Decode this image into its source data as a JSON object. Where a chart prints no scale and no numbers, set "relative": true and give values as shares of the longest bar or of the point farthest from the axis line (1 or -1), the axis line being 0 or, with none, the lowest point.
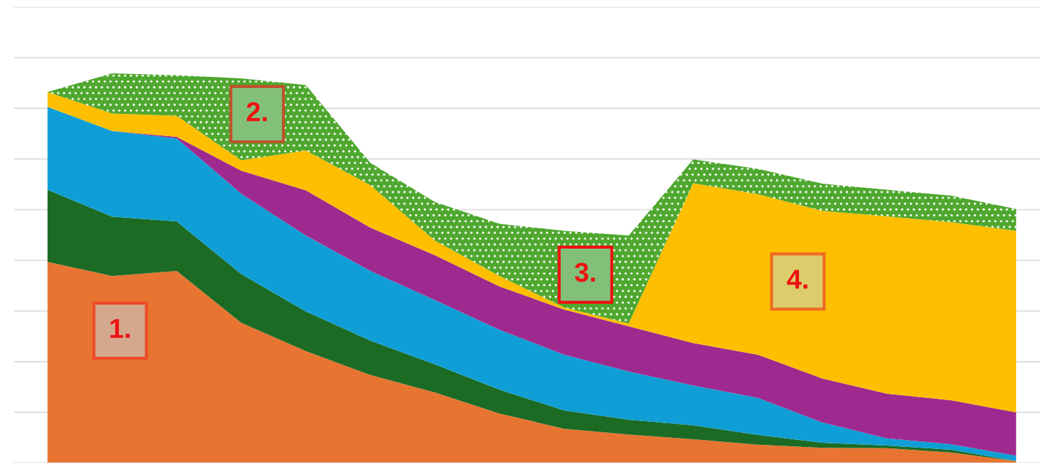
{
  "chart_data": {
    "type": "area",
    "stacked": true,
    "relative": true,
    "grid": "y",
    "categories": [
      null,
      null,
      null,
      null,
      null,
      null,
      null,
      null,
      null,
      null,
      null,
      null,
      null,
      null,
      null,
      null
    ],
    "series": [
      {
        "color": "#e87431",
        "values": [
          0.516,
          0.48,
          0.493,
          0.36,
          0.287,
          0.226,
          0.181,
          0.127,
          0.088,
          0.073,
          0.061,
          0.047,
          0.039,
          0.038,
          0.027,
          0.005
        ]
      },
      {
        "color": "#1b6b24",
        "values": [
          0.185,
          0.152,
          0.127,
          0.125,
          0.102,
          0.088,
          0.072,
          0.061,
          0.047,
          0.038,
          0.036,
          0.025,
          0.013,
          0.007,
          0.007,
          0
        ]
      },
      {
        "color": "#0f9fd6",
        "values": [
          0.213,
          0.22,
          0.213,
          0.206,
          0.195,
          0.179,
          0.165,
          0.154,
          0.143,
          0.124,
          0.102,
          0.095,
          0.052,
          0.018,
          0.014,
          0.014
        ]
      },
      {
        "color": "#9e2a8f",
        "values": [
          0,
          0,
          0.004,
          0.059,
          0.116,
          0.111,
          0.115,
          0.111,
          0.116,
          0.116,
          0.109,
          0.111,
          0.113,
          0.115,
          0.113,
          0.111
        ]
      },
      {
        "color": "#fdbf00",
        "values": [
          0.038,
          0.045,
          0.054,
          0.027,
          0.102,
          0.109,
          0.038,
          0.027,
          0.005,
          0.007,
          0.41,
          0.412,
          0.43,
          0.455,
          0.457,
          0.466
        ]
      },
      {
        "color": "#4ea72e",
        "values": [
          0,
          0.103,
          0.104,
          0.21,
          0.168,
          0.057,
          0.099,
          0.134,
          0.197,
          0.226,
          0.061,
          0.065,
          0.07,
          0.068,
          0.068,
          0.056
        ]
      }
    ],
    "annotations": [
      "1.",
      "2.",
      "3.",
      "4."
    ]
  }
}
